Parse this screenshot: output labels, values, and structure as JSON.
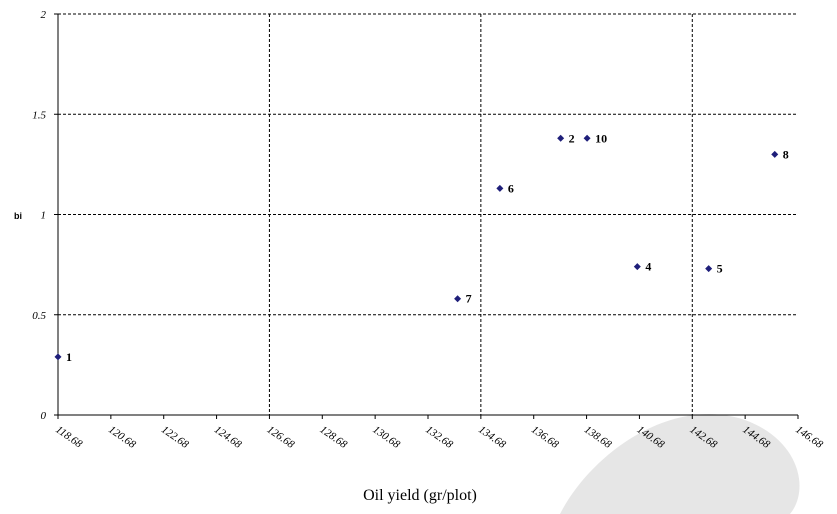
{
  "chart_data": {
    "type": "scatter",
    "xlabel": "Oil yield (gr/plot)",
    "ylabel": "bi",
    "xlim": [
      118.68,
      146.68
    ],
    "ylim": [
      0,
      2
    ],
    "x_ticks": [
      "118.68",
      "120.68",
      "122.68",
      "124.68",
      "126.68",
      "128.68",
      "130.68",
      "132.68",
      "134.68",
      "136.68",
      "138.68",
      "140.68",
      "142.68",
      "144.68",
      "146.68"
    ],
    "y_ticks": [
      "0",
      "0.5",
      "1",
      "1.5",
      "2"
    ],
    "grid": "dashed",
    "vertical_gridlines_at": [
      126.68,
      134.68,
      142.68
    ],
    "marker_color": "#1f1f7a",
    "points": [
      {
        "label": "1",
        "x": 118.68,
        "y": 0.29
      },
      {
        "label": "2",
        "x": 137.7,
        "y": 1.38
      },
      {
        "label": "4",
        "x": 140.6,
        "y": 0.74
      },
      {
        "label": "5",
        "x": 143.3,
        "y": 0.73
      },
      {
        "label": "6",
        "x": 135.4,
        "y": 1.13
      },
      {
        "label": "7",
        "x": 133.8,
        "y": 0.58
      },
      {
        "label": "8",
        "x": 145.8,
        "y": 1.3
      },
      {
        "label": "10",
        "x": 138.7,
        "y": 1.38
      }
    ]
  }
}
